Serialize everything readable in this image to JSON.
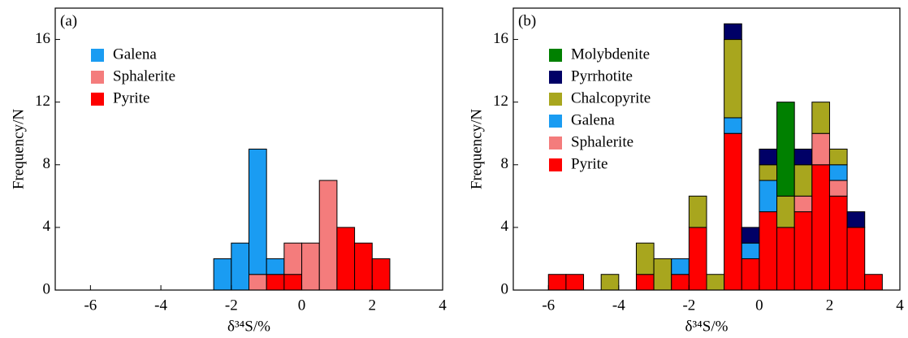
{
  "chart_data": [
    {
      "type": "histogram",
      "panel_label": "(a)",
      "x_label": "δ³⁴S/%",
      "y_label": "Frequency/N",
      "xlim": [
        -7,
        4
      ],
      "xticks": [
        -6,
        -4,
        -2,
        0,
        2,
        4
      ],
      "ylim": [
        0,
        18
      ],
      "yticks": [
        0,
        4,
        8,
        12,
        16
      ],
      "bins": [
        -2.5,
        -2,
        -1.5,
        -1,
        -0.5,
        0,
        0.5,
        1,
        1.5,
        2,
        2.5
      ],
      "series": [
        {
          "name": "Galena",
          "color": "#1a9cf2",
          "values": [
            2,
            3,
            8,
            1,
            0,
            0,
            0,
            0,
            0,
            0
          ]
        },
        {
          "name": "Sphalerite",
          "color": "#f47c7c",
          "values": [
            0,
            0,
            1,
            0,
            2,
            3,
            7,
            0,
            0,
            0
          ]
        },
        {
          "name": "Pyrite",
          "color": "#fe0000",
          "values": [
            0,
            0,
            0,
            1,
            1,
            0,
            0,
            4,
            3,
            2
          ]
        }
      ]
    },
    {
      "type": "histogram",
      "panel_label": "(b)",
      "x_label": "δ³⁴S/%",
      "y_label": "Frequency/N",
      "xlim": [
        -7,
        4
      ],
      "xticks": [
        -6,
        -4,
        -2,
        0,
        2,
        4
      ],
      "ylim": [
        0,
        18
      ],
      "yticks": [
        0,
        4,
        8,
        12,
        16
      ],
      "bins": [
        -6,
        -5.5,
        -5,
        -4.5,
        -4,
        -3.5,
        -3,
        -2.5,
        -2,
        -1.5,
        -1,
        -0.5,
        0,
        0.5,
        1,
        1.5,
        2,
        2.5,
        3,
        3.5
      ],
      "series": [
        {
          "name": "Molybdenite",
          "color": "#008000",
          "values": [
            0,
            0,
            0,
            0,
            0,
            0,
            0,
            0,
            0,
            0,
            0,
            0,
            0,
            6,
            0,
            0,
            0,
            0,
            0
          ]
        },
        {
          "name": "Pyrrhotite",
          "color": "#000066",
          "values": [
            0,
            0,
            0,
            0,
            0,
            0,
            0,
            0,
            0,
            0,
            1,
            1,
            1,
            0,
            1,
            0,
            0,
            1,
            0
          ]
        },
        {
          "name": "Chalcopyrite",
          "color": "#a8a61e",
          "values": [
            0,
            0,
            0,
            1,
            0,
            2,
            2,
            0,
            2,
            1,
            5,
            0,
            1,
            2,
            2,
            2,
            1,
            0,
            0
          ]
        },
        {
          "name": "Galena",
          "color": "#1a9cf2",
          "values": [
            0,
            0,
            0,
            0,
            0,
            0,
            0,
            1,
            0,
            0,
            1,
            1,
            2,
            0,
            0,
            0,
            1,
            0,
            0
          ]
        },
        {
          "name": "Sphalerite",
          "color": "#f47c7c",
          "values": [
            0,
            0,
            0,
            0,
            0,
            0,
            0,
            0,
            0,
            0,
            0,
            0,
            0,
            0,
            1,
            2,
            1,
            0,
            0
          ]
        },
        {
          "name": "Pyrite",
          "color": "#fe0000",
          "values": [
            1,
            1,
            0,
            0,
            0,
            1,
            0,
            1,
            4,
            0,
            10,
            2,
            5,
            4,
            5,
            8,
            6,
            4,
            1
          ]
        }
      ]
    }
  ]
}
